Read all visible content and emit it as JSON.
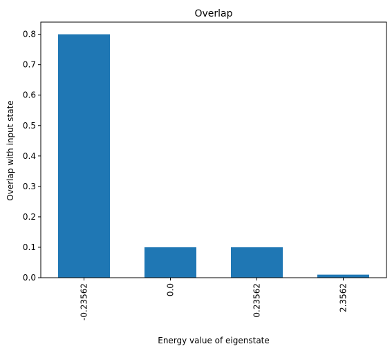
{
  "chart_data": {
    "type": "bar",
    "title": "Overlap",
    "xlabel": "Energy value of eigenstate",
    "ylabel": "Overlap with input state",
    "categories": [
      "-0.23562",
      "0.0",
      "0.23562",
      "2.3562"
    ],
    "values": [
      0.8,
      0.1,
      0.1,
      0.01
    ],
    "ylim": [
      0,
      0.84
    ],
    "yticks": [
      "0.0",
      "0.1",
      "0.2",
      "0.3",
      "0.4",
      "0.5",
      "0.6",
      "0.7",
      "0.8"
    ],
    "grid": false,
    "legend": "none",
    "colors": {
      "bar": "#1f77b4",
      "axis": "#000000"
    }
  }
}
